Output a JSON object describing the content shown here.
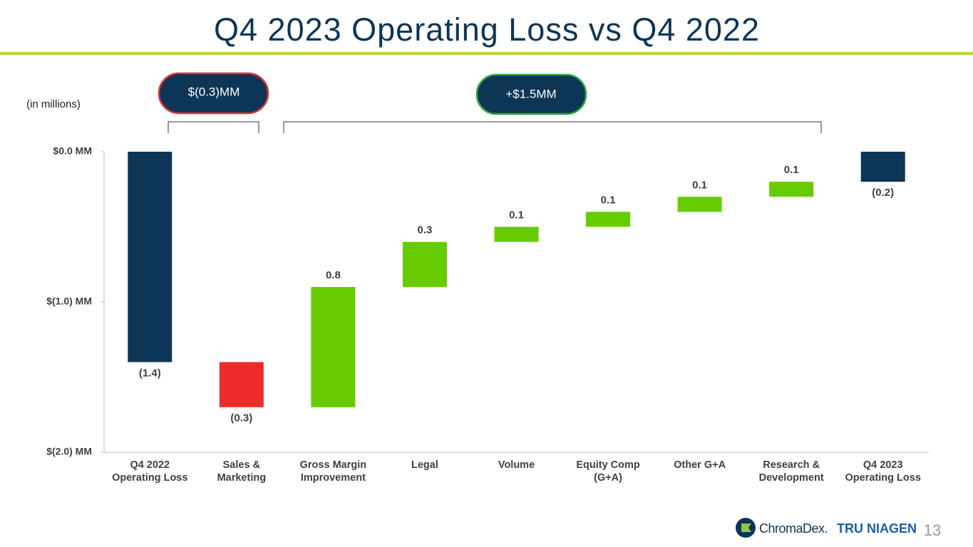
{
  "chart_data": {
    "type": "waterfall",
    "title": "Q4 2023 Operating Loss vs Q4 2022",
    "unit_note": "(in millions)",
    "categories": [
      "Q4 2022 Operating Loss",
      "Sales & Marketing",
      "Gross Margin Improvement",
      "Legal",
      "Volume",
      "Equity Comp (G+A)",
      "Other G+A",
      "Research & Development",
      "Q4 2023 Operating Loss"
    ],
    "values": [
      -1.4,
      -0.3,
      0.8,
      0.3,
      0.1,
      0.1,
      0.1,
      0.1,
      -0.2
    ],
    "value_labels": [
      "(1.4)",
      "(0.3)",
      "0.8",
      "0.3",
      "0.1",
      "0.1",
      "0.1",
      "0.1",
      "(0.2)"
    ],
    "measure": [
      "absolute",
      "relative",
      "relative",
      "relative",
      "relative",
      "relative",
      "relative",
      "relative",
      "total"
    ],
    "colors": [
      "#0d3656",
      "#ee2a2a",
      "#66cc00",
      "#66cc00",
      "#66cc00",
      "#66cc00",
      "#66cc00",
      "#66cc00",
      "#0d3656"
    ],
    "ylim": [
      -2,
      0
    ],
    "yticks": [
      {
        "value": 0,
        "label": "$0.0 MM"
      },
      {
        "value": -1,
        "label": "$(1.0) MM"
      },
      {
        "value": -2,
        "label": "$(2.0) MM"
      }
    ],
    "annotations": [
      "$(0.3)MM",
      "+$1.5MM"
    ]
  },
  "footer": {
    "brand": "ChromaDex.",
    "product": "TRU NIAGEN",
    "page": "13"
  }
}
